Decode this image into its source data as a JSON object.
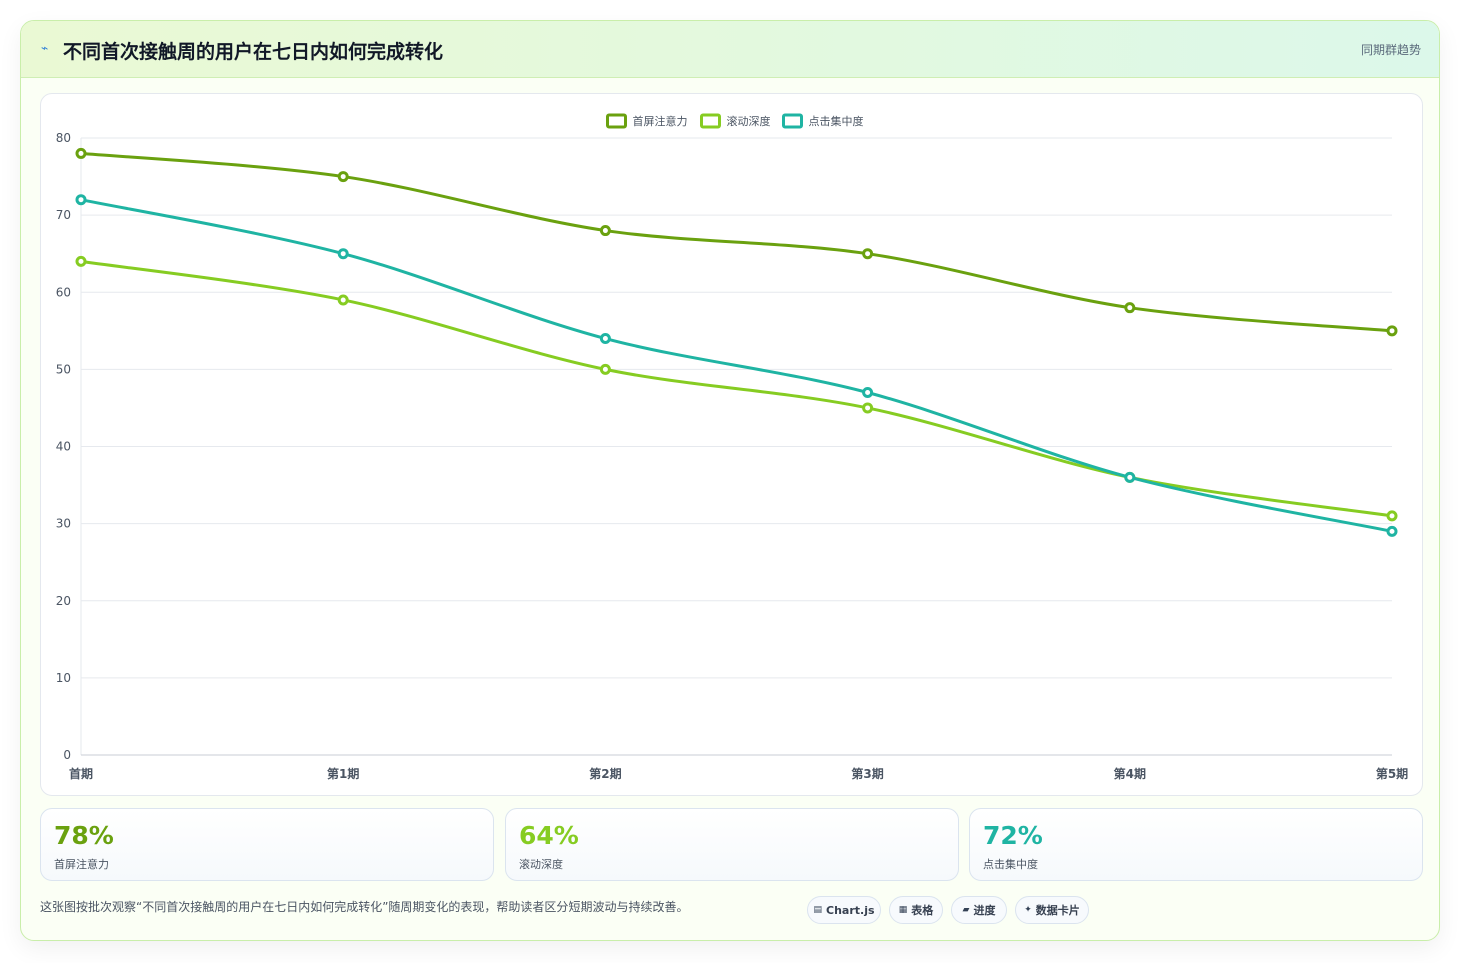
{
  "header": {
    "icon": "chart-trend-icon",
    "title": "不同首次接触周的用户在七日内如何完成转化",
    "right_label": "同期群趋势"
  },
  "colors": {
    "series": [
      "#6aa10f",
      "#86cc22",
      "#1fb4a3"
    ],
    "grid": "#e6e9ee",
    "tick": "#4b5563",
    "accent": "#cfeeb4"
  },
  "chart_data": {
    "type": "line",
    "title": "",
    "xlabel": "",
    "ylabel": "",
    "categories": [
      "首期",
      "第1期",
      "第2期",
      "第3期",
      "第4期",
      "第5期"
    ],
    "ylim": [
      0,
      80
    ],
    "yticks": [
      0,
      10,
      20,
      30,
      40,
      50,
      60,
      70,
      80
    ],
    "grid": true,
    "legend": "top-center",
    "series": [
      {
        "name": "首屏注意力",
        "values": [
          78,
          75,
          68,
          65,
          58,
          55
        ]
      },
      {
        "name": "滚动深度",
        "values": [
          64,
          59,
          50,
          45,
          36,
          31
        ]
      },
      {
        "name": "点击集中度",
        "values": [
          72,
          65,
          54,
          47,
          36,
          29
        ]
      }
    ]
  },
  "stats": [
    {
      "value": "78%",
      "label": "首屏注意力"
    },
    {
      "value": "64%",
      "label": "滚动深度"
    },
    {
      "value": "72%",
      "label": "点击集中度"
    }
  ],
  "footnote": "这张图按批次观察“不同首次接触周的用户在七日内如何完成转化”随周期变化的表现，帮助读者区分短期波动与持续改善。",
  "tags": [
    {
      "icon": "chart-icon",
      "label": "Chart.js"
    },
    {
      "icon": "table-icon",
      "label": "表格"
    },
    {
      "icon": "progress-icon",
      "label": "进度"
    },
    {
      "icon": "sparkle-icon",
      "label": "数据卡片"
    }
  ]
}
